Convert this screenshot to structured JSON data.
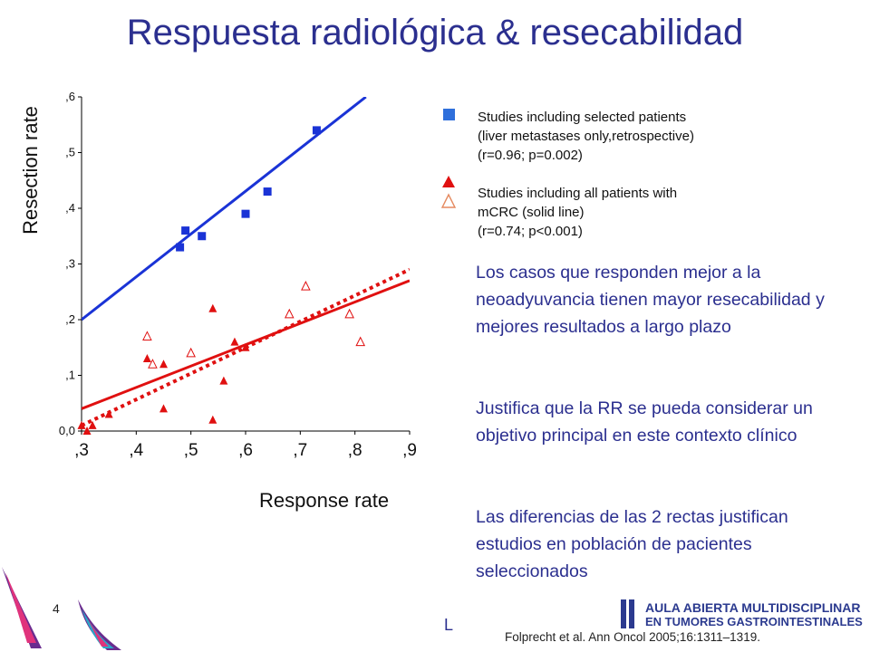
{
  "slide": {
    "title": "Respuesta radiológica & resecabilidad",
    "slide_number": "4",
    "stray_char": "L",
    "citation": "Folprecht et al. Ann Oncol 2005;16:1311–1319.",
    "logo": {
      "line1": "AULA ABIERTA MULTIDISCIPLINAR",
      "line2": "EN TUMORES GASTROINTESTINALES"
    },
    "colors": {
      "title": "#2b2f8f",
      "blue_series": "#1a33d6",
      "red_series": "#e01010"
    },
    "legend": [
      {
        "marker": "blue-square",
        "lines": [
          "Studies including selected patients",
          "(liver metastases only,retrospective)",
          "(r=0.96; p=0.002)"
        ]
      },
      {
        "marker": "red-triangles",
        "lines": [
          "Studies including all patients with",
          "mCRC (solid line)",
          "(r=0.74; p<0.001)"
        ]
      }
    ],
    "paragraphs": [
      "Los casos que responden mejor a la neoadyuvancia tienen mayor resecabilidad y  mejores resultados a largo plazo",
      "Justifica que la RR se pueda considerar un objetivo principal en este contexto clínico",
      "Las diferencias de las 2 rectas justifican estudios en población de pacientes seleccionados"
    ]
  },
  "chart_data": {
    "type": "scatter",
    "xlabel": "Response rate",
    "ylabel": "Resection rate",
    "xlim": [
      0.3,
      0.9
    ],
    "ylim": [
      0.0,
      0.6
    ],
    "x_ticks": [
      0.3,
      0.4,
      0.5,
      0.6,
      0.7,
      0.8,
      0.9
    ],
    "x_tick_labels": [
      ",3",
      ",4",
      ",5",
      ",6",
      ",7",
      ",8",
      ",9"
    ],
    "y_ticks": [
      0.0,
      0.1,
      0.2,
      0.3,
      0.4,
      0.5,
      0.6
    ],
    "y_tick_labels": [
      "0,0",
      ",1",
      ",2",
      ",3",
      ",4",
      ",5",
      ",6"
    ],
    "series": [
      {
        "marker": "square-filled",
        "color": "#1a33d6",
        "points": [
          [
            0.48,
            0.33
          ],
          [
            0.49,
            0.36
          ],
          [
            0.52,
            0.35
          ],
          [
            0.6,
            0.39
          ],
          [
            0.64,
            0.43
          ],
          [
            0.73,
            0.54
          ]
        ],
        "fit": [
          [
            0.3,
            0.2
          ],
          [
            0.82,
            0.6
          ]
        ],
        "fit_style": "solid"
      },
      {
        "marker": "triangle-filled",
        "color": "#e01010",
        "points": [
          [
            0.3,
            0.01
          ],
          [
            0.31,
            0.0
          ],
          [
            0.32,
            0.01
          ],
          [
            0.35,
            0.03
          ],
          [
            0.42,
            0.13
          ],
          [
            0.45,
            0.04
          ],
          [
            0.45,
            0.12
          ],
          [
            0.54,
            0.22
          ],
          [
            0.54,
            0.02
          ],
          [
            0.56,
            0.09
          ],
          [
            0.58,
            0.16
          ],
          [
            0.6,
            0.15
          ]
        ],
        "fit": [
          [
            0.3,
            0.01
          ],
          [
            0.9,
            0.29
          ]
        ],
        "fit_style": "dotted"
      },
      {
        "marker": "triangle-open",
        "color": "#e01010",
        "points": [
          [
            0.42,
            0.17
          ],
          [
            0.43,
            0.12
          ],
          [
            0.5,
            0.14
          ],
          [
            0.68,
            0.21
          ],
          [
            0.71,
            0.26
          ],
          [
            0.79,
            0.21
          ],
          [
            0.81,
            0.16
          ]
        ]
      },
      {
        "marker": "none",
        "color": "#e01010",
        "fit": [
          [
            0.3,
            0.04
          ],
          [
            0.9,
            0.27
          ]
        ],
        "fit_style": "solid"
      }
    ]
  }
}
